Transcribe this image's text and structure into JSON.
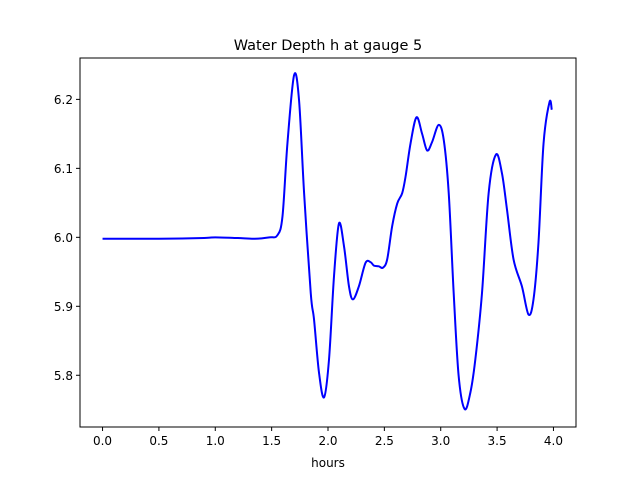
{
  "chart_data": {
    "type": "line",
    "title": "Water Depth h at gauge 5",
    "xlabel": "hours",
    "ylabel": "",
    "xlim": [
      -0.2,
      4.2
    ],
    "ylim": [
      5.725,
      6.26
    ],
    "xticks": [
      0.0,
      0.5,
      1.0,
      1.5,
      2.0,
      2.5,
      3.0,
      3.5,
      4.0
    ],
    "xtick_labels": [
      "0.0",
      "0.5",
      "1.0",
      "1.5",
      "2.0",
      "2.5",
      "3.0",
      "3.5",
      "4.0"
    ],
    "yticks": [
      5.8,
      5.9,
      6.0,
      6.1,
      6.2
    ],
    "ytick_labels": [
      "5.8",
      "5.9",
      "6.0",
      "6.1",
      "6.2"
    ],
    "grid": false,
    "series": [
      {
        "name": "h",
        "color": "#0000ff",
        "x": [
          0.0,
          0.5,
          0.9,
          1.0,
          1.2,
          1.35,
          1.48,
          1.551,
          1.596,
          1.64,
          1.699,
          1.743,
          1.788,
          1.847,
          1.876,
          1.92,
          1.965,
          2.009,
          2.053,
          2.097,
          2.142,
          2.186,
          2.221,
          2.274,
          2.333,
          2.378,
          2.407,
          2.451,
          2.487,
          2.525,
          2.569,
          2.614,
          2.658,
          2.688,
          2.732,
          2.785,
          2.835,
          2.879,
          2.923,
          2.982,
          3.027,
          3.071,
          3.115,
          3.159,
          3.212,
          3.263,
          3.307,
          3.366,
          3.425,
          3.49,
          3.543,
          3.588,
          3.646,
          3.72,
          3.779,
          3.823,
          3.867,
          3.912,
          3.965,
          3.985
        ],
        "y": [
          5.998,
          5.998,
          5.999,
          6.0,
          5.999,
          5.998,
          6.0,
          6.003,
          6.03,
          6.136,
          6.235,
          6.199,
          6.064,
          5.919,
          5.881,
          5.804,
          5.768,
          5.823,
          5.943,
          6.02,
          5.987,
          5.929,
          5.91,
          5.929,
          5.963,
          5.964,
          5.959,
          5.958,
          5.956,
          5.968,
          6.016,
          6.049,
          6.064,
          6.088,
          6.136,
          6.174,
          6.15,
          6.126,
          6.138,
          6.163,
          6.141,
          6.064,
          5.919,
          5.799,
          5.751,
          5.775,
          5.823,
          5.919,
          6.064,
          6.12,
          6.093,
          6.04,
          5.968,
          5.929,
          5.888,
          5.91,
          5.992,
          6.136,
          6.196,
          6.185
        ]
      }
    ]
  }
}
